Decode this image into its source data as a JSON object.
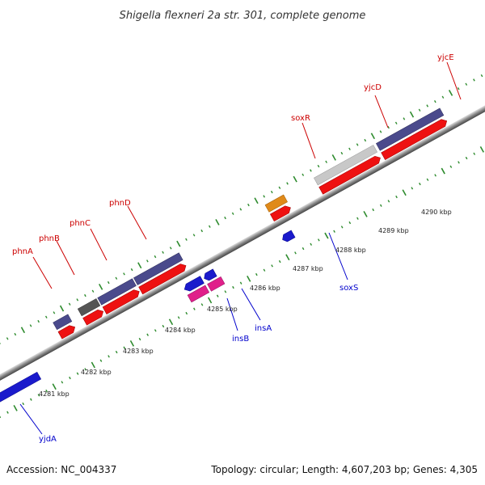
{
  "title": "Shigella flexneri 2a str. 301, complete genome",
  "footer": {
    "accession": "Accession: NC_004337",
    "summary": "Topology: circular; Length: 4,607,203 bp; Genes: 4,305"
  },
  "colors": {
    "forward_label": "#cc0000",
    "reverse_label": "#0000cc",
    "tick": "#2e8b2e",
    "backbone_dark": "#555555",
    "backbone_light": "#cccccc"
  },
  "scale": {
    "unit": "kbp",
    "ticks": [
      "4281 kbp",
      "4282 kbp",
      "4283 kbp",
      "4284 kbp",
      "4285 kbp",
      "4286 kbp",
      "4287 kbp",
      "4288 kbp",
      "4289 kbp",
      "4290 kbp"
    ]
  },
  "genes": [
    {
      "name": "phnA",
      "strand": "forward",
      "color": "#4a4a8c"
    },
    {
      "name": "phnB",
      "strand": "forward",
      "color": "#555555"
    },
    {
      "name": "phnC",
      "strand": "forward",
      "color": "#4a4a8c"
    },
    {
      "name": "phnD",
      "strand": "forward",
      "color": "#4a4a8c"
    },
    {
      "name": "soxR",
      "strand": "forward",
      "color": "#e08a1a"
    },
    {
      "name": "yjcD",
      "strand": "forward",
      "color": "#c8c8c8"
    },
    {
      "name": "yjcE",
      "strand": "forward",
      "color": "#4a4a8c"
    },
    {
      "name": "yjdA",
      "strand": "reverse",
      "color": "#1a1acc"
    },
    {
      "name": "insB",
      "strand": "reverse",
      "color": "#e0208a"
    },
    {
      "name": "insA",
      "strand": "reverse",
      "color": "#e0208a"
    },
    {
      "name": "soxS",
      "strand": "reverse",
      "color": "#1a1acc"
    }
  ]
}
